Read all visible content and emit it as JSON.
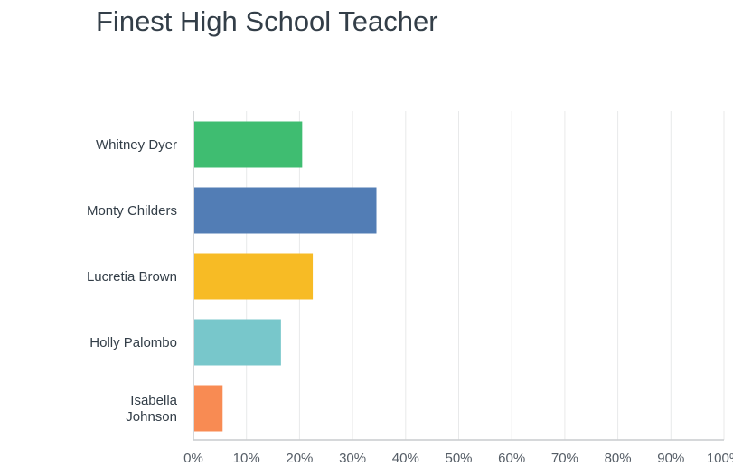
{
  "chart_data": {
    "type": "bar",
    "orientation": "horizontal",
    "title": "Finest High School Teacher",
    "categories": [
      [
        "Whitney Dyer"
      ],
      [
        "Monty Childers"
      ],
      [
        "Lucretia Brown"
      ],
      [
        "Holly Palombo"
      ],
      [
        "Isabella",
        "Johnson"
      ]
    ],
    "values": [
      20.5,
      34.5,
      22.5,
      16.5,
      5.5
    ],
    "value_unit": "%",
    "colors": [
      "#3fbd71",
      "#527db5",
      "#f7bb25",
      "#78c7cb",
      "#f88b53"
    ],
    "xlim": [
      0,
      100
    ],
    "xticks": [
      "0%",
      "10%",
      "20%",
      "30%",
      "40%",
      "50%",
      "60%",
      "70%",
      "80%",
      "90%",
      "100%"
    ],
    "grid": true,
    "legend": "none"
  }
}
